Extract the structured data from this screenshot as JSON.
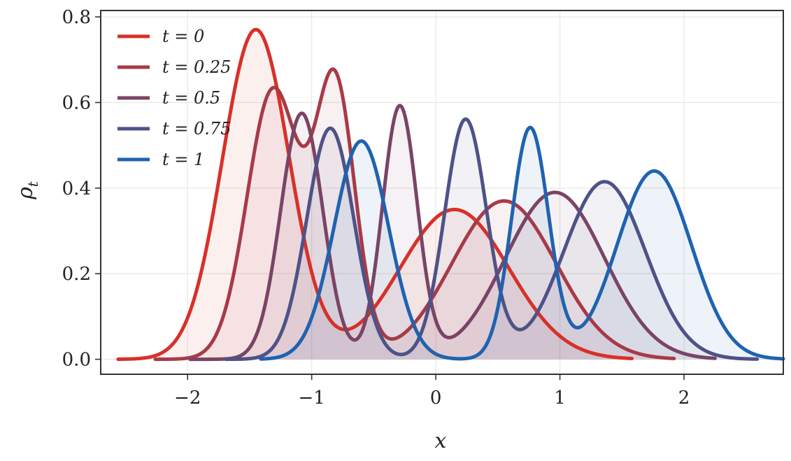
{
  "chart_data": {
    "type": "line",
    "xlabel": "x",
    "ylabel": "ρ",
    "ylabel_subscript": "t",
    "xlim": [
      -2.7,
      2.8
    ],
    "ylim": [
      -0.035,
      0.815
    ],
    "xticks": [
      -2,
      -1,
      0,
      1,
      2
    ],
    "xtick_labels": [
      "−2",
      "−1",
      "0",
      "1",
      "2"
    ],
    "yticks": [
      0.0,
      0.2,
      0.4,
      0.6,
      0.8
    ],
    "ytick_labels": [
      "0.0",
      "0.2",
      "0.4",
      "0.6",
      "0.8"
    ],
    "grid": true,
    "fill_under": true,
    "legend_position": "top-left",
    "series": [
      {
        "name": "t = 0",
        "color": "#d7312a",
        "xrange": [
          -2.56,
          1.58
        ],
        "components": [
          {
            "mu": -1.45,
            "sigma": 0.27,
            "peak": 0.77
          },
          {
            "mu": 0.15,
            "sigma": 0.44,
            "peak": 0.35
          }
        ]
      },
      {
        "name": "t = 0.25",
        "color": "#a83a48",
        "xrange": [
          -2.26,
          1.92
        ],
        "components": [
          {
            "mu": -1.31,
            "sigma": 0.21,
            "peak": 0.63
          },
          {
            "mu": -0.81,
            "sigma": 0.16,
            "peak": 0.635
          },
          {
            "mu": 0.55,
            "sigma": 0.42,
            "peak": 0.37
          }
        ]
      },
      {
        "name": "t = 0.5",
        "color": "#7a4466",
        "xrange": [
          -1.98,
          2.25
        ],
        "components": [
          {
            "mu": -1.08,
            "sigma": 0.17,
            "peak": 0.575
          },
          {
            "mu": -0.29,
            "sigma": 0.14,
            "peak": 0.59
          },
          {
            "mu": 0.96,
            "sigma": 0.4,
            "peak": 0.39
          }
        ]
      },
      {
        "name": "t = 0.75",
        "color": "#4e5287",
        "xrange": [
          -1.69,
          2.59
        ],
        "components": [
          {
            "mu": -0.85,
            "sigma": 0.19,
            "peak": 0.54
          },
          {
            "mu": 0.24,
            "sigma": 0.17,
            "peak": 0.56
          },
          {
            "mu": 1.36,
            "sigma": 0.33,
            "peak": 0.415
          }
        ]
      },
      {
        "name": "t = 1",
        "color": "#1f63b0",
        "xrange": [
          -1.41,
          2.8
        ],
        "components": [
          {
            "mu": -0.6,
            "sigma": 0.22,
            "peak": 0.51
          },
          {
            "mu": 0.76,
            "sigma": 0.15,
            "peak": 0.54
          },
          {
            "mu": 1.76,
            "sigma": 0.3,
            "peak": 0.44
          }
        ]
      }
    ]
  }
}
